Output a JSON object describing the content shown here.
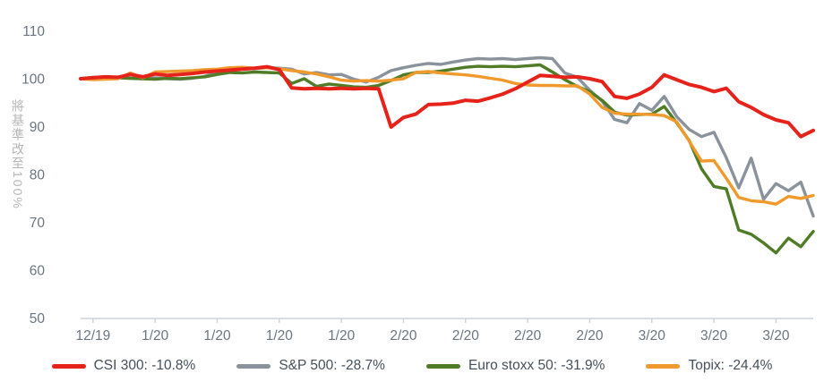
{
  "colors": {
    "background": "#ffffff",
    "axis_line": "#ccd3d9",
    "tick_text": "#6a7580",
    "legend_text": "#454f59",
    "ylabel_text": "#b5b5b5"
  },
  "chart_data": {
    "type": "line",
    "title": "",
    "xlabel": "",
    "ylabel": "將基準改至100%",
    "ylim": [
      50,
      110
    ],
    "yticks": [
      110,
      100,
      90,
      80,
      70,
      60,
      50
    ],
    "grid": false,
    "legend_position": "bottom",
    "xticklabels": [
      "12/19",
      "1/20",
      "1/20",
      "1/20",
      "1/20",
      "2/20",
      "2/20",
      "2/20",
      "2/20",
      "3/20",
      "3/20",
      "3/20"
    ],
    "tick_indices": [
      1,
      6,
      11,
      16,
      21,
      26,
      31,
      36,
      41,
      46,
      51,
      56
    ],
    "series": [
      {
        "name": "S&P 500: -28.7%",
        "color": "#8a939b",
        "final_change": "-28.7%",
        "values": [
          100.0,
          100.1,
          100.0,
          100.2,
          100.1,
          100.0,
          100.2,
          100.0,
          99.9,
          100.1,
          100.5,
          101.3,
          101.9,
          102.2,
          102.1,
          102.3,
          102.2,
          102.0,
          101.0,
          101.3,
          100.8,
          100.9,
          99.9,
          99.3,
          100.3,
          101.7,
          102.3,
          102.8,
          103.2,
          103.0,
          103.5,
          103.9,
          104.2,
          104.1,
          104.2,
          104.0,
          104.2,
          104.4,
          104.2,
          101.2,
          100.3,
          97.6,
          95.3,
          91.5,
          90.8,
          94.8,
          93.4,
          96.3,
          92.1,
          89.4,
          87.9,
          88.8,
          83.5,
          77.2,
          83.4,
          74.8,
          78.1,
          76.6,
          78.4,
          71.3
        ]
      },
      {
        "name": "Euro stoxx 50: -31.9%",
        "color": "#507c28",
        "final_change": "-31.9%",
        "values": [
          100.0,
          100.3,
          100.4,
          100.2,
          100.1,
          100.0,
          99.9,
          100.1,
          100.0,
          100.2,
          100.4,
          100.9,
          101.3,
          101.2,
          101.4,
          101.3,
          101.2,
          99.0,
          100.0,
          98.4,
          98.9,
          98.6,
          98.3,
          98.2,
          98.6,
          99.6,
          100.8,
          101.3,
          101.3,
          101.6,
          102.0,
          102.4,
          102.6,
          102.5,
          102.6,
          102.5,
          102.7,
          102.9,
          101.4,
          99.8,
          98.4,
          97.3,
          95.5,
          93.0,
          92.4,
          92.5,
          92.6,
          94.2,
          90.8,
          87.1,
          81.2,
          77.5,
          77.0,
          68.4,
          67.5,
          65.7,
          63.6,
          66.7,
          64.9,
          68.1
        ]
      },
      {
        "name": "Topix: -24.4%",
        "color": "#f09a2d",
        "final_change": "-24.4%",
        "values": [
          100.0,
          99.8,
          99.9,
          100.0,
          101.2,
          100.2,
          101.4,
          101.5,
          101.6,
          101.7,
          101.9,
          102.0,
          102.3,
          102.4,
          102.2,
          102.3,
          102.1,
          101.7,
          101.4,
          101.0,
          100.4,
          99.7,
          99.5,
          99.6,
          99.5,
          99.7,
          100.0,
          101.3,
          101.5,
          101.2,
          101.0,
          100.8,
          100.5,
          100.1,
          99.7,
          99.0,
          98.7,
          98.6,
          98.6,
          98.5,
          98.5,
          96.8,
          94.0,
          92.8,
          92.6,
          92.6,
          92.5,
          92.3,
          91.0,
          87.0,
          82.8,
          82.9,
          79.2,
          75.2,
          74.5,
          74.3,
          73.8,
          75.4,
          75.0,
          75.6
        ]
      },
      {
        "name": "CSI 300: -10.8%",
        "color": "#e5231b",
        "final_change": "-10.8%",
        "values": [
          100.0,
          100.2,
          100.4,
          100.3,
          100.9,
          100.4,
          101.0,
          100.7,
          100.9,
          101.1,
          101.4,
          101.6,
          101.8,
          102.0,
          102.2,
          102.5,
          101.9,
          98.1,
          97.9,
          98.0,
          97.9,
          98.0,
          97.9,
          98.0,
          97.9,
          89.9,
          91.9,
          92.6,
          94.6,
          94.7,
          94.9,
          95.5,
          95.3,
          96.0,
          96.8,
          97.9,
          99.3,
          100.7,
          100.5,
          100.3,
          100.4,
          100.0,
          99.4,
          96.3,
          95.9,
          96.8,
          98.2,
          100.8,
          99.8,
          98.8,
          98.2,
          97.3,
          98.0,
          95.2,
          94.0,
          92.5,
          91.4,
          90.8,
          87.9,
          89.2
        ]
      }
    ],
    "legend_order": [
      "CSI 300: -10.8%",
      "S&P 500: -28.7%",
      "Euro stoxx 50: -31.9%",
      "Topix: -24.4%"
    ]
  }
}
